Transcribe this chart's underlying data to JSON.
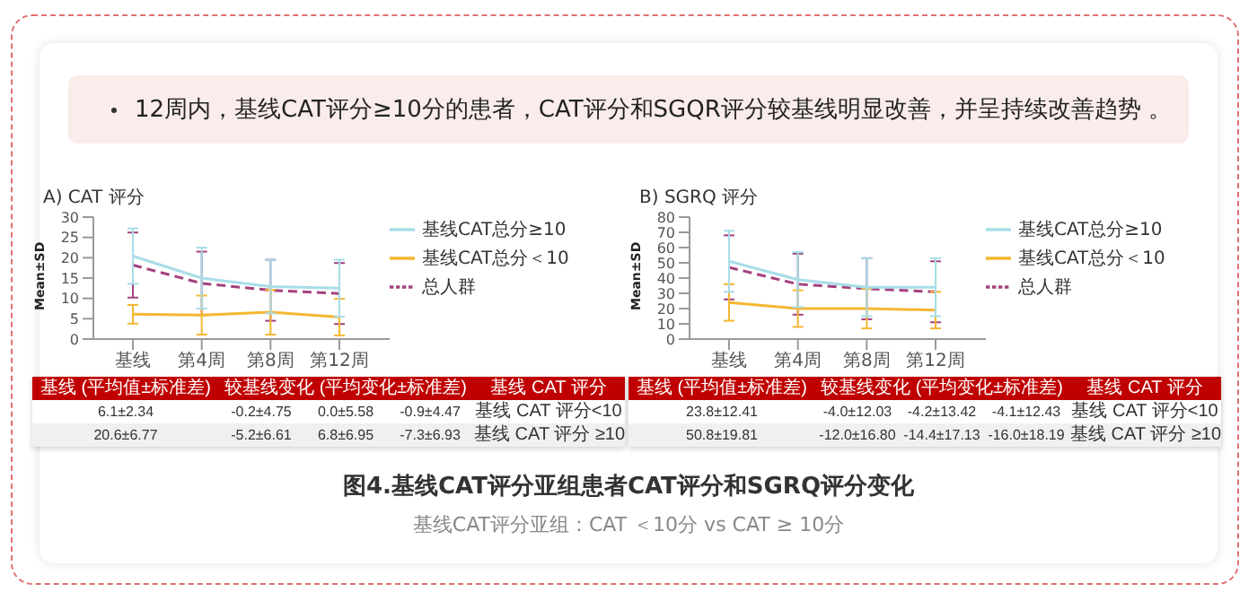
{
  "chart_data": [
    {
      "type": "line",
      "title": "A) CAT 评分",
      "ylabel": "Mean±SD",
      "categories": [
        "基线",
        "第4周",
        "第8周",
        "第12周"
      ],
      "ylim": [
        0,
        30
      ],
      "yticks": [
        0,
        5,
        10,
        15,
        20,
        25,
        30
      ],
      "grid": false,
      "legend": "right",
      "marker": "none",
      "series": [
        {
          "name": "总人群",
          "color": "#a3417e",
          "line_style": "dashed",
          "values": [
            18.2,
            13.7,
            12.0,
            11.2
          ],
          "errors": [
            8,
            7.8,
            7.5,
            7.5
          ]
        },
        {
          "name": "基线CAT总分＜10",
          "color": "#f5b731",
          "line_style": "solid",
          "values": [
            6.1,
            5.9,
            6.6,
            5.4
          ],
          "errors": [
            2.3,
            4.8,
            5.5,
            4.5
          ]
        },
        {
          "name": "基线CAT总分≥10",
          "color": "#a8dde8",
          "line_style": "solid",
          "values": [
            20.4,
            15.0,
            12.9,
            12.5
          ],
          "errors": [
            6.8,
            7.5,
            6.6,
            7
          ]
        }
      ],
      "annotations": [
        "基线 (平均值±标准差)",
        "较基线变化 (平均变化±标准差)",
        "基线 CAT 评分",
        "6.1±2.34",
        "-0.2±4.75",
        "0.0±5.58",
        "-0.9±4.47",
        "基线 CAT 评分<10",
        "20.6±6.77",
        "-5.2±6.61",
        "6.8±6.95",
        "-7.3±6.93",
        "基线 CAT 评分 ≥10"
      ]
    },
    {
      "type": "line",
      "title": "B) SGRQ 评分",
      "ylabel": "Mean±SD",
      "categories": [
        "基线",
        "第4周",
        "第8周",
        "第12周"
      ],
      "ylim": [
        0,
        80
      ],
      "yticks": [
        0,
        10,
        20,
        30,
        40,
        50,
        60,
        70,
        80
      ],
      "grid": false,
      "legend": "right",
      "marker": "none",
      "series": [
        {
          "name": "总人群",
          "color": "#a3417e",
          "line_style": "dashed",
          "values": [
            47,
            36,
            33,
            31
          ],
          "errors": [
            21,
            20,
            20,
            20
          ]
        },
        {
          "name": "基线CAT总分＜10",
          "color": "#f5b731",
          "line_style": "solid",
          "values": [
            24,
            20,
            20,
            19
          ],
          "errors": [
            12,
            12,
            13,
            12
          ]
        },
        {
          "name": "基线CAT总分≥10",
          "color": "#a8dde8",
          "line_style": "solid",
          "values": [
            51,
            39,
            34,
            34
          ],
          "errors": [
            20,
            18,
            19,
            19
          ]
        }
      ],
      "annotations": [
        "基线 (平均值±标准差)",
        "较基线变化 (平均变化±标准差)",
        "基线 CAT 评分",
        "23.8±12.41",
        "-4.0±12.03",
        "-4.2±13.42",
        "-4.1±12.43",
        "基线 CAT 评分<10",
        "50.8±19.81",
        "-12.0±16.80",
        "-14.4±17.13",
        "-16.0±18.19",
        "基线 CAT 评分 ≥10"
      ]
    },
    {
      "type": "other",
      "title": "图4.基线CAT评分亚组患者CAT评分和SGRQ评分变化",
      "subtitle": "基线CAT评分亚组：CAT ＜10分 vs CAT ≥ 10分",
      "annotations": [
        "12周内，基线CAT评分≥10分的患者，CAT评分和SGQR评分较基线明显改善，并呈持续改善趋势 。"
      ]
    }
  ]
}
